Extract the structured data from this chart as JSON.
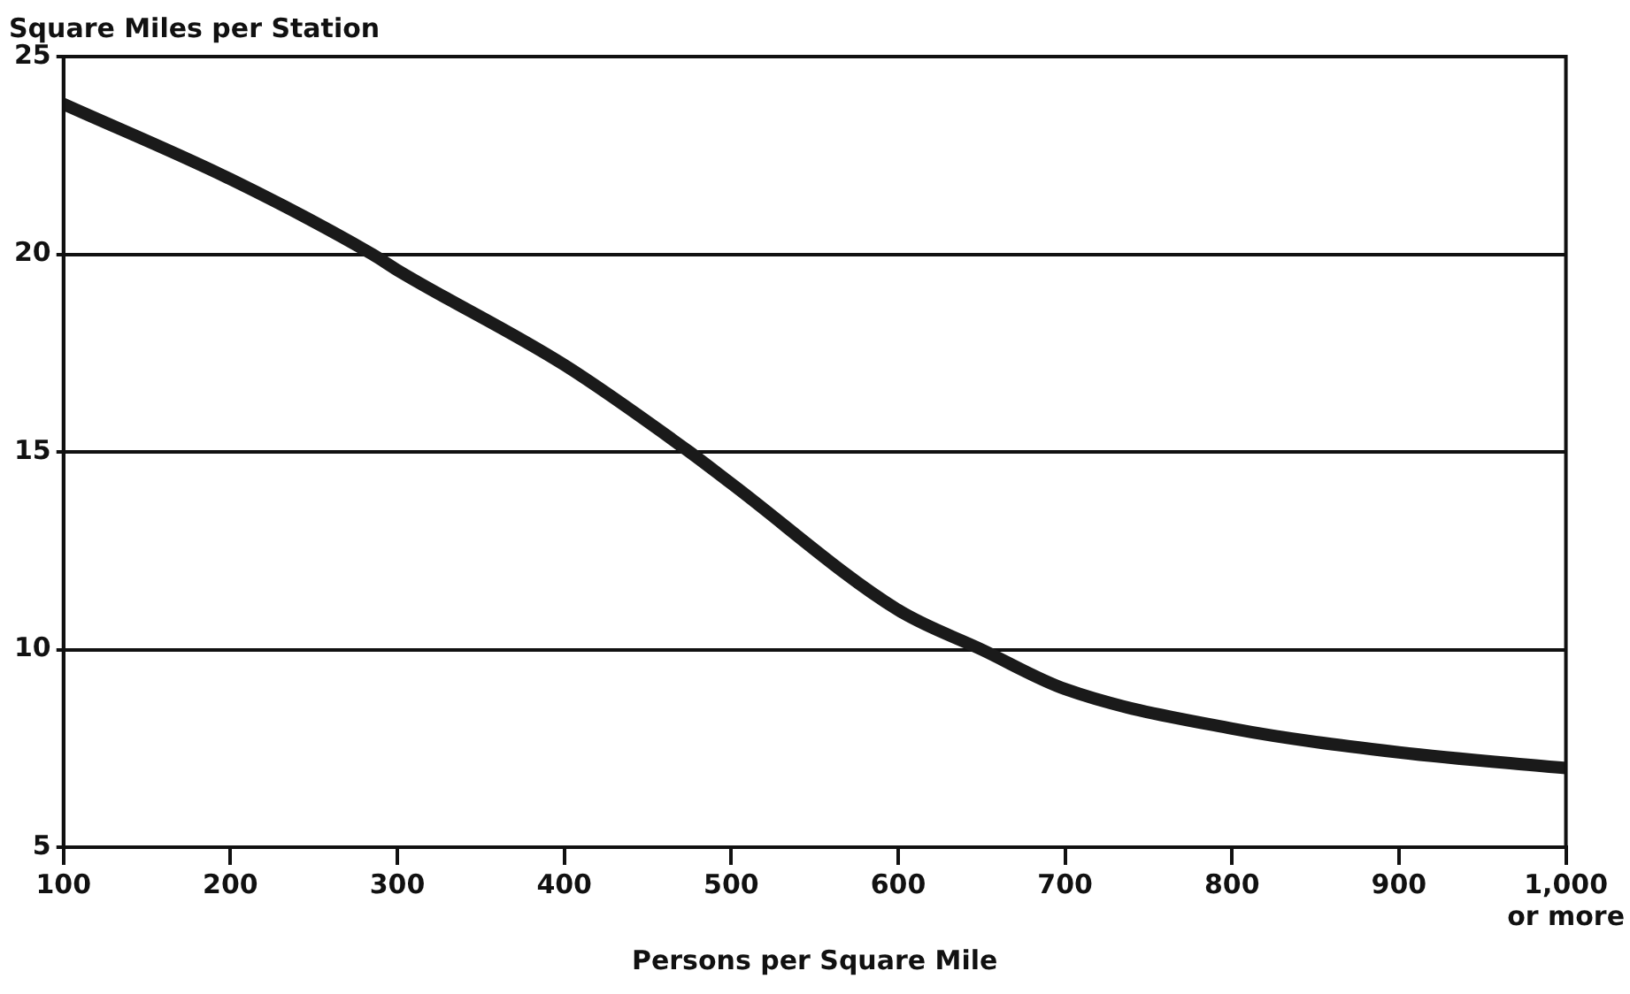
{
  "chart_data": {
    "type": "line",
    "ylabel": "Square Miles per Station",
    "xlabel": "Persons per Square Mile",
    "x": [
      100,
      200,
      285,
      300,
      400,
      475,
      500,
      600,
      650,
      700,
      800,
      900,
      1000
    ],
    "series": [
      {
        "color": "#1a1a1a",
        "values": [
          23.8,
          21.9,
          20,
          19.6,
          17.2,
          15,
          14.2,
          11,
          10,
          9,
          8,
          7.4,
          7
        ]
      }
    ],
    "xlim": [
      100,
      1000
    ],
    "xticks": [
      100,
      200,
      300,
      400,
      500,
      600,
      700,
      800,
      900,
      {
        "value": 1000,
        "label": "1,000\nor more"
      }
    ],
    "ylim": [
      5,
      25
    ],
    "yticks": [
      5,
      10,
      15,
      20,
      25
    ],
    "grid": "y",
    "legend": false,
    "marker": "none",
    "line_style": "solid"
  }
}
